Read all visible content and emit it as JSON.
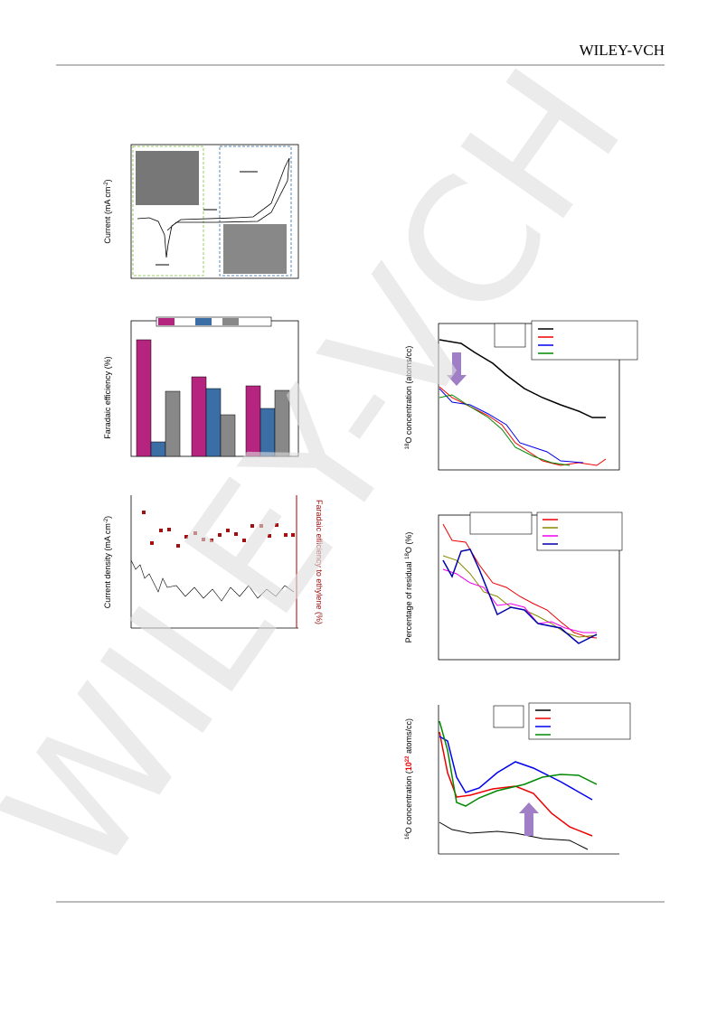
{
  "header": {
    "brand": "WILEY-VCH"
  },
  "watermark": "WILEY-VCH",
  "figures": [
    {
      "y_label": [
        "Current (mA cm",
        "-2",
        ")"
      ]
    },
    {
      "y_label": [
        "Faradaic efficiency (%)"
      ]
    },
    {
      "y_label": [
        "Current density (mA cm",
        "-2",
        ")"
      ],
      "y2_label": [
        "Faradaic efficiency to ethylene (%)"
      ]
    },
    {
      "y_label": [
        "18",
        "O concentration (atoms/cc)"
      ]
    },
    {
      "y_label": [
        "Percentage of residual ",
        "18",
        "O (%)"
      ]
    },
    {
      "y_label": [
        "16",
        "O concentration (",
        "10",
        "22",
        " atoms/cc)"
      ]
    }
  ]
}
